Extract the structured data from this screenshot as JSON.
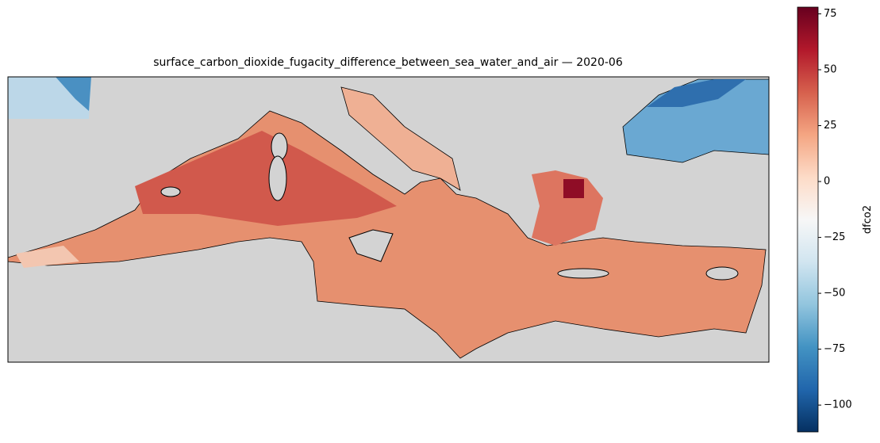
{
  "map": {
    "title": "surface_carbon_dioxide_fugacity_difference_between_sea_water_and_air — 2020-06",
    "colorbar": {
      "label": "dfco2",
      "lim": [
        -112,
        78
      ],
      "ticks": [
        {
          "value": -100,
          "label": "−100"
        },
        {
          "value": -75,
          "label": "−75"
        },
        {
          "value": -50,
          "label": "−50"
        },
        {
          "value": -25,
          "label": "−25"
        },
        0,
        25,
        50,
        75
      ]
    }
  }
}
